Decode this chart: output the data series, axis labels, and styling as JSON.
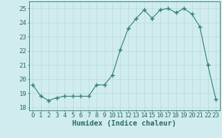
{
  "x": [
    0,
    1,
    2,
    3,
    4,
    5,
    6,
    7,
    8,
    9,
    10,
    11,
    12,
    13,
    14,
    15,
    16,
    17,
    18,
    19,
    20,
    21,
    22,
    23
  ],
  "y": [
    19.6,
    18.8,
    18.5,
    18.7,
    18.8,
    18.8,
    18.8,
    18.8,
    19.6,
    19.6,
    20.3,
    22.1,
    23.6,
    24.3,
    24.9,
    24.3,
    24.9,
    25.0,
    24.7,
    25.0,
    24.6,
    23.7,
    21.0,
    18.6
  ],
  "line_color": "#2d7d6e",
  "marker_color": "#2d7d6e",
  "bg_color": "#d0ecee",
  "grid_color": "#b8d8da",
  "xlabel": "Humidex (Indice chaleur)",
  "ylim": [
    17.8,
    25.5
  ],
  "xlim": [
    -0.5,
    23.5
  ],
  "yticks": [
    18,
    19,
    20,
    21,
    22,
    23,
    24,
    25
  ],
  "xticks": [
    0,
    1,
    2,
    3,
    4,
    5,
    6,
    7,
    8,
    9,
    10,
    11,
    12,
    13,
    14,
    15,
    16,
    17,
    18,
    19,
    20,
    21,
    22,
    23
  ],
  "font_color": "#2a6b60",
  "tick_fontsize": 6.5,
  "xlabel_fontsize": 7.5
}
